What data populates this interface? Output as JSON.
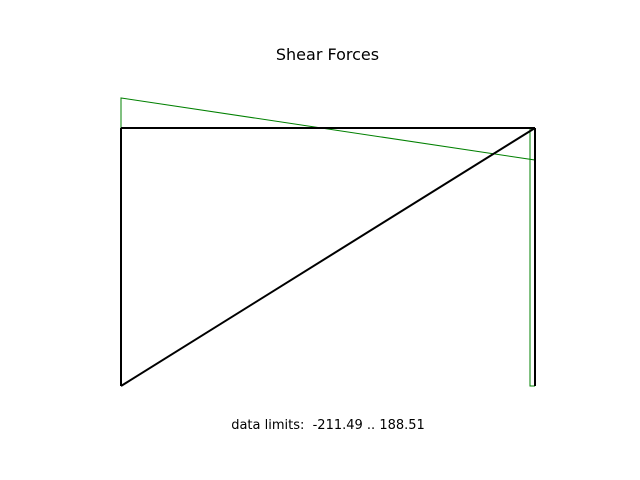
{
  "figure": {
    "title": "Shear Forces",
    "data_limits_text": "data limits:  -211.49 .. 188.51"
  },
  "colors": {
    "frame": "#000000",
    "shear_diagram": "#008000",
    "accent_marker": "#ff0000"
  },
  "diagram": {
    "type": "structural frame shear force diagram",
    "members": [
      "left column",
      "top beam",
      "right column",
      "diagonal brace"
    ]
  }
}
